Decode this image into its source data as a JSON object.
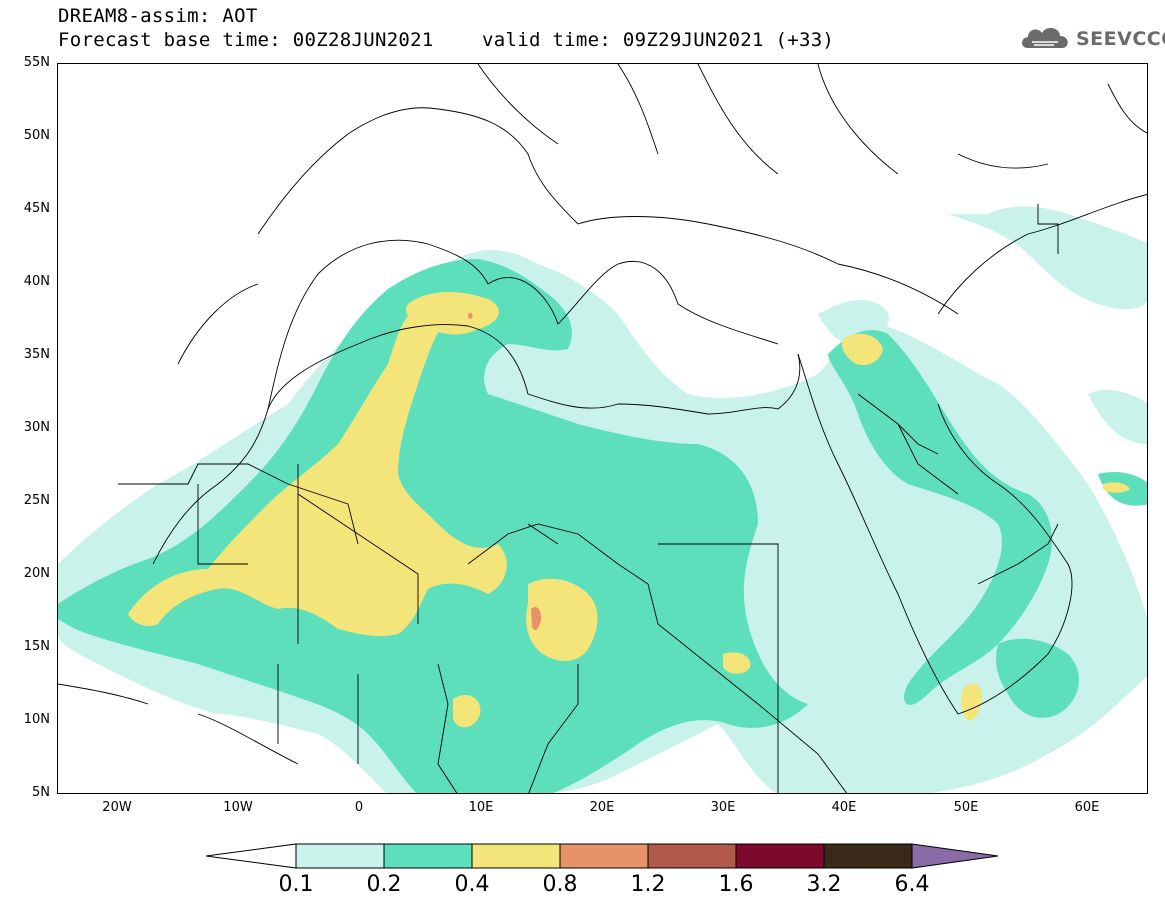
{
  "header": {
    "line1": "DREAM8-assim: AOT",
    "line2": "Forecast base time: 00Z28JUN2021",
    "line3": "valid time: 09Z29JUN2021 (+33)"
  },
  "logo": {
    "text": "SEEVCCC",
    "icon": "cloud-icon"
  },
  "axes": {
    "lat_ticks": [
      "55N",
      "50N",
      "45N",
      "40N",
      "35N",
      "30N",
      "25N",
      "20N",
      "15N",
      "10N",
      "5N"
    ],
    "lon_ticks": [
      "20W",
      "10W",
      "0",
      "10E",
      "20E",
      "30E",
      "40E",
      "50E",
      "60E"
    ],
    "lon_range": [
      -25,
      65
    ],
    "lat_range": [
      5,
      55
    ]
  },
  "legend": {
    "boundaries": [
      "0.1",
      "0.2",
      "0.4",
      "0.8",
      "1.2",
      "1.6",
      "3.2",
      "6.4"
    ],
    "colors": [
      "#ffffff",
      "#c8f2ea",
      "#5edfbb",
      "#f4e57a",
      "#e8926a",
      "#b25a4a",
      "#7d0a2c",
      "#3a2a1a",
      "#8b6aa8"
    ]
  }
}
